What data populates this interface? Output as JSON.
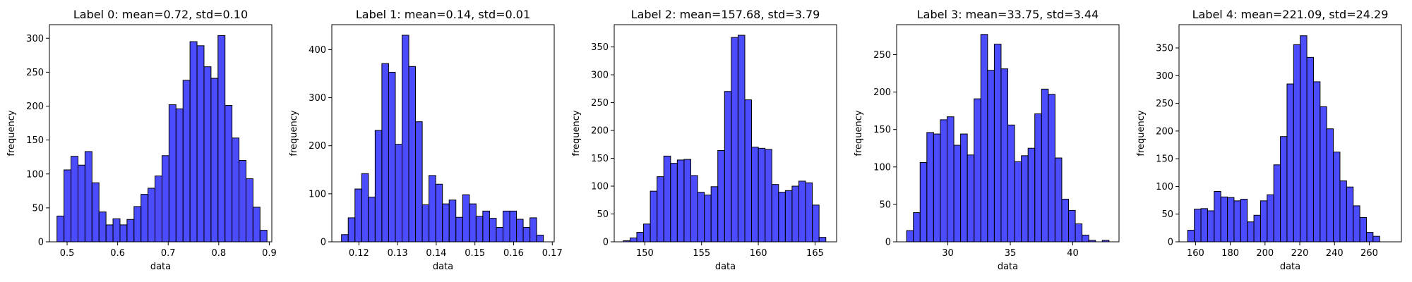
{
  "chart_data": [
    {
      "type": "histogram",
      "title": "Label 0: mean=0.72, std=0.10",
      "xlabel": "data",
      "ylabel": "frequency",
      "xlim": [
        0.465,
        0.905
      ],
      "ylim": [
        0,
        320
      ],
      "xticks": [
        0.5,
        0.6,
        0.7,
        0.8,
        0.9
      ],
      "xtick_labels": [
        "0.5",
        "0.6",
        "0.7",
        "0.8",
        "0.9"
      ],
      "yticks": [
        0,
        50,
        100,
        150,
        200,
        250,
        300
      ],
      "ytick_labels": [
        "0",
        "50",
        "100",
        "150",
        "200",
        "250",
        "300"
      ],
      "bin_start": 0.48,
      "bin_width": 0.01385,
      "values": [
        38,
        106,
        126,
        113,
        133,
        87,
        44,
        25,
        34,
        25,
        33,
        52,
        70,
        79,
        97,
        127,
        202,
        196,
        238,
        295,
        289,
        258,
        241,
        304,
        201,
        153,
        120,
        93,
        51,
        17
      ],
      "color": "#0000ff",
      "edgecolor": "#000000"
    },
    {
      "type": "histogram",
      "title": "Label 1: mean=0.14, std=0.01",
      "xlabel": "data",
      "ylabel": "frequency",
      "xlim": [
        0.113,
        0.1705
      ],
      "ylim": [
        0,
        452
      ],
      "xticks": [
        0.12,
        0.13,
        0.14,
        0.15,
        0.16,
        0.17
      ],
      "xtick_labels": [
        "0.12",
        "0.13",
        "0.14",
        "0.15",
        "0.16",
        "0.17"
      ],
      "yticks": [
        0,
        100,
        200,
        300,
        400
      ],
      "ytick_labels": [
        "0",
        "100",
        "200",
        "300",
        "400"
      ],
      "bin_start": 0.1155,
      "bin_width": 0.00174,
      "values": [
        15,
        50,
        110,
        142,
        93,
        232,
        371,
        353,
        203,
        430,
        365,
        250,
        77,
        138,
        120,
        79,
        87,
        51,
        98,
        79,
        53,
        64,
        49,
        30,
        64,
        64,
        47,
        30,
        50,
        14
      ],
      "color": "#0000ff",
      "edgecolor": "#000000"
    },
    {
      "type": "histogram",
      "title": "Label 2: mean=157.68, std=3.79",
      "xlabel": "data",
      "ylabel": "frequency",
      "xlim": [
        147.3,
        166.9
      ],
      "ylim": [
        0,
        390
      ],
      "xticks": [
        150,
        155,
        160,
        165
      ],
      "xtick_labels": [
        "150",
        "155",
        "160",
        "165"
      ],
      "yticks": [
        0,
        50,
        100,
        150,
        200,
        250,
        300,
        350
      ],
      "ytick_labels": [
        "0",
        "50",
        "100",
        "150",
        "200",
        "250",
        "300",
        "350"
      ],
      "bin_start": 148.1,
      "bin_width": 0.595,
      "values": [
        2,
        7,
        17,
        32,
        91,
        117,
        154,
        141,
        147,
        148,
        119,
        89,
        84,
        99,
        164,
        270,
        367,
        371,
        255,
        170,
        168,
        166,
        103,
        89,
        92,
        100,
        109,
        106,
        66,
        8
      ],
      "color": "#0000ff",
      "edgecolor": "#000000"
    },
    {
      "type": "histogram",
      "title": "Label 3: mean=33.75, std=3.44",
      "xlabel": "data",
      "ylabel": "frequency",
      "xlim": [
        25.9,
        43.7
      ],
      "ylim": [
        0,
        290
      ],
      "xticks": [
        30,
        35,
        40
      ],
      "xtick_labels": [
        "30",
        "35",
        "40"
      ],
      "yticks": [
        0,
        50,
        100,
        150,
        200,
        250
      ],
      "ytick_labels": [
        "0",
        "50",
        "100",
        "150",
        "200",
        "250"
      ],
      "bin_start": 26.7,
      "bin_width": 0.54,
      "values": [
        15,
        39,
        106,
        146,
        144,
        163,
        167,
        129,
        144,
        116,
        191,
        277,
        229,
        264,
        231,
        156,
        107,
        115,
        125,
        171,
        204,
        197,
        112,
        57,
        42,
        24,
        9,
        2,
        0,
        2
      ],
      "color": "#0000ff",
      "edgecolor": "#000000"
    },
    {
      "type": "histogram",
      "title": "Label 4: mean=221.09, std=24.29",
      "xlabel": "data",
      "ylabel": "frequency",
      "xlim": [
        150.5,
        278.5
      ],
      "ylim": [
        0,
        392
      ],
      "xticks": [
        160,
        180,
        200,
        220,
        240,
        260
      ],
      "xtick_labels": [
        "160",
        "180",
        "200",
        "220",
        "240",
        "260"
      ],
      "yticks": [
        0,
        50,
        100,
        150,
        200,
        250,
        300,
        350
      ],
      "ytick_labels": [
        "0",
        "50",
        "100",
        "150",
        "200",
        "250",
        "300",
        "350"
      ],
      "bin_start": 155.5,
      "bin_width": 3.81,
      "values": [
        21,
        59,
        60,
        56,
        91,
        81,
        80,
        74,
        77,
        36,
        48,
        74,
        85,
        139,
        190,
        285,
        356,
        372,
        333,
        289,
        244,
        204,
        162,
        110,
        99,
        65,
        44,
        17,
        10
      ],
      "color": "#0000ff",
      "edgecolor": "#000000"
    }
  ]
}
